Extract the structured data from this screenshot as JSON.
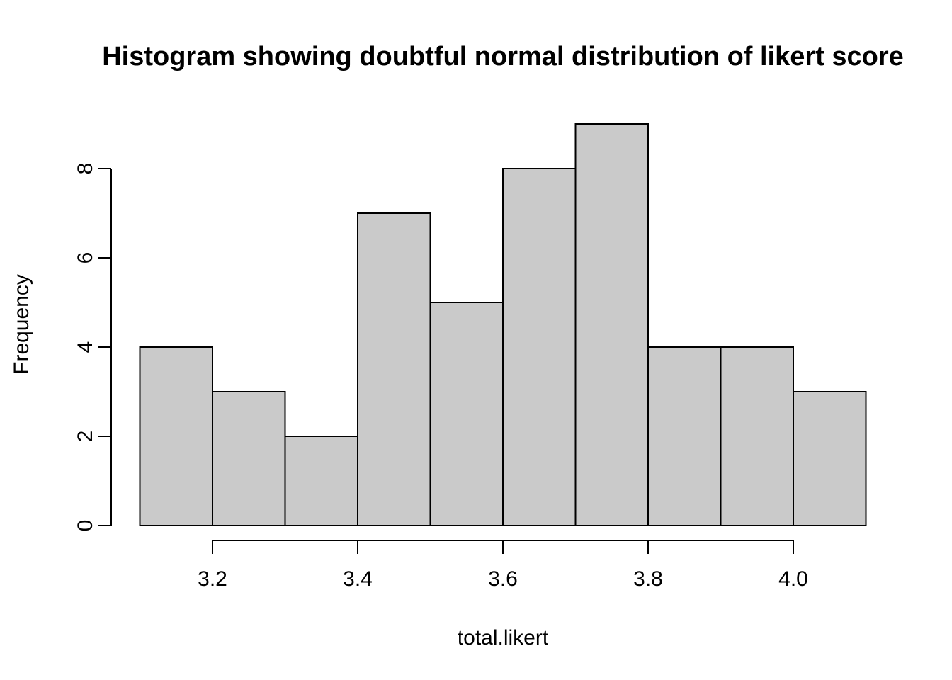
{
  "chart_data": {
    "type": "bar",
    "variant": "histogram",
    "title": "Histogram showing doubtful normal distribution of likert score",
    "xlabel": "total.likert",
    "ylabel": "Frequency",
    "bin_edges": [
      3.1,
      3.2,
      3.3,
      3.4,
      3.5,
      3.6,
      3.7,
      3.8,
      3.9,
      4.0,
      4.1
    ],
    "counts": [
      4,
      3,
      2,
      7,
      5,
      8,
      9,
      4,
      4,
      3
    ],
    "x_tick_values": [
      3.2,
      3.4,
      3.6,
      3.8,
      4.0
    ],
    "x_tick_labels": [
      "3.2",
      "3.4",
      "3.6",
      "3.8",
      "4.0"
    ],
    "y_tick_values": [
      0,
      2,
      4,
      6,
      8
    ],
    "y_tick_labels": [
      "0",
      "2",
      "4",
      "6",
      "8"
    ],
    "xlim": [
      3.1,
      4.1
    ],
    "ylim": [
      0,
      9
    ],
    "grid": false,
    "legend": "none",
    "colors": {
      "bar_fill": "#CACACA",
      "bar_stroke": "#000000",
      "axis": "#000000",
      "text": "#000000",
      "background": "#FFFFFF"
    }
  }
}
